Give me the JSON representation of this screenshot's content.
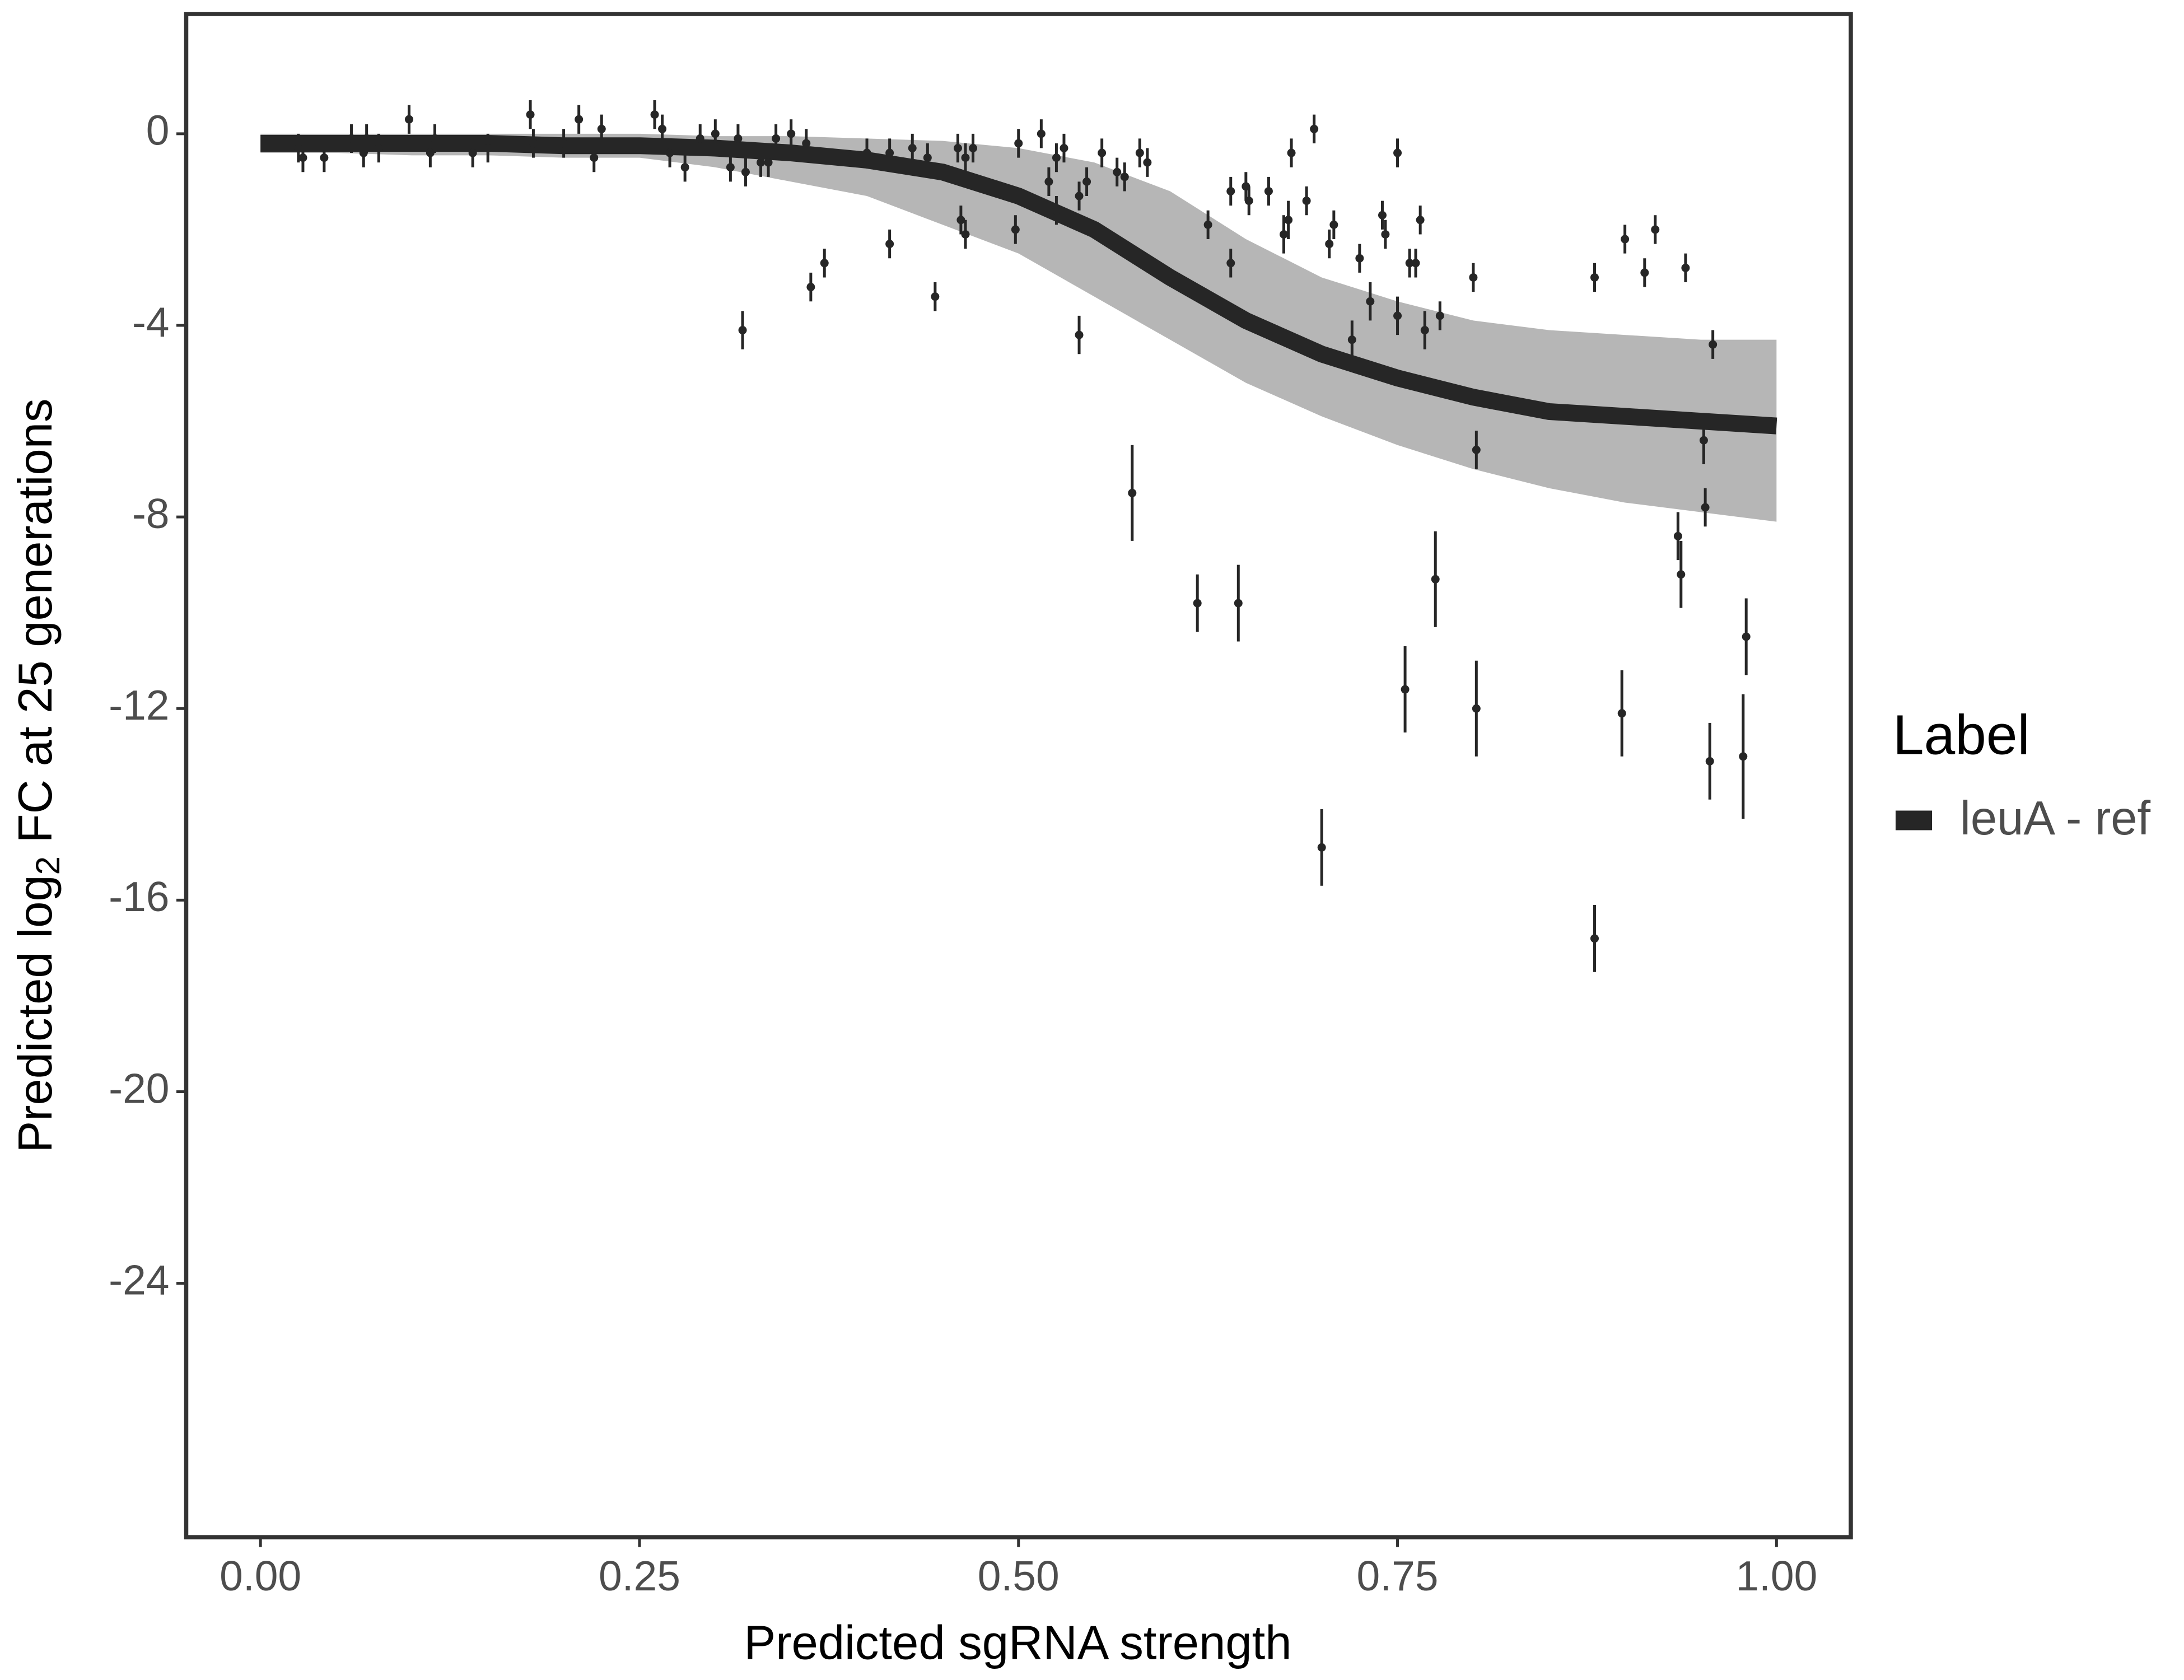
{
  "chart_data": {
    "type": "scatter",
    "x_label": "Predicted sgRNA strength",
    "y_label": [
      "Predicted  log",
      "2",
      " FC at 25 generations"
    ],
    "legend_title": "Label",
    "legend_position": "right",
    "grid": false,
    "xlim": [
      -0.049,
      1.049
    ],
    "ylim": [
      -29.3,
      2.5
    ],
    "xticks": [
      {
        "value": 0,
        "label": "0.00"
      },
      0.25,
      {
        "value": 0.5,
        "label": "0.50"
      },
      0.75,
      {
        "value": 1,
        "label": "1.00"
      }
    ],
    "yticks": [
      0,
      -4,
      -8,
      -12,
      -16,
      -20,
      -24
    ],
    "series": [
      {
        "name": "leuA - ref",
        "color": "#262626",
        "x": [
          0,
          0.05,
          0.1,
          0.15,
          0.2,
          0.25,
          0.3,
          0.35,
          0.4,
          0.45,
          0.5,
          0.55,
          0.6,
          0.65,
          0.7,
          0.75,
          0.8,
          0.85,
          0.9,
          0.95,
          1
        ],
        "values": [
          -0.2,
          -0.2,
          -0.2,
          -0.2,
          -0.25,
          -0.25,
          -0.3,
          -0.4,
          -0.55,
          -0.8,
          -1.3,
          -2.0,
          -3.0,
          -3.9,
          -4.6,
          -5.1,
          -5.5,
          -5.8,
          -5.9,
          -6.0,
          -6.1
        ]
      }
    ],
    "band": {
      "color": "#a9a9a9",
      "x": [
        0,
        0.05,
        0.1,
        0.15,
        0.2,
        0.25,
        0.3,
        0.35,
        0.4,
        0.45,
        0.5,
        0.55,
        0.6,
        0.65,
        0.7,
        0.75,
        0.8,
        0.85,
        0.9,
        0.95,
        1
      ],
      "upper": [
        0,
        0,
        0,
        0,
        0,
        0,
        -0.05,
        -0.05,
        -0.1,
        -0.15,
        -0.3,
        -0.6,
        -1.2,
        -2.2,
        -3.0,
        -3.5,
        -3.9,
        -4.1,
        -4.2,
        -4.3,
        -4.3
      ],
      "lower": [
        -0.4,
        -0.4,
        -0.45,
        -0.45,
        -0.5,
        -0.5,
        -0.7,
        -1.0,
        -1.3,
        -1.9,
        -2.5,
        -3.4,
        -4.3,
        -5.2,
        -5.9,
        -6.5,
        -7.0,
        -7.4,
        -7.7,
        -7.9,
        -8.1
      ]
    },
    "points": {
      "color": "#262626",
      "x": [
        0.025,
        0.028,
        0.042,
        0.06,
        0.068,
        0.07,
        0.078,
        0.098,
        0.112,
        0.115,
        0.14,
        0.15,
        0.178,
        0.18,
        0.2,
        0.21,
        0.22,
        0.225,
        0.26,
        0.265,
        0.27,
        0.28,
        0.29,
        0.3,
        0.31,
        0.315,
        0.32,
        0.33,
        0.335,
        0.34,
        0.35,
        0.36,
        0.318,
        0.363,
        0.372,
        0.4,
        0.415,
        0.415,
        0.43,
        0.44,
        0.445,
        0.46,
        0.462,
        0.465,
        0.47,
        0.465,
        0.498,
        0.5,
        0.515,
        0.52,
        0.525,
        0.525,
        0.53,
        0.54,
        0.545,
        0.54,
        0.555,
        0.565,
        0.57,
        0.575,
        0.58,
        0.585,
        0.618,
        0.625,
        0.64,
        0.64,
        0.645,
        0.65,
        0.652,
        0.665,
        0.675,
        0.678,
        0.68,
        0.69,
        0.695,
        0.7,
        0.705,
        0.708,
        0.72,
        0.725,
        0.732,
        0.74,
        0.742,
        0.75,
        0.75,
        0.755,
        0.758,
        0.762,
        0.765,
        0.768,
        0.775,
        0.778,
        0.8,
        0.802,
        0.802,
        0.88,
        0.88,
        0.898,
        0.9,
        0.913,
        0.92,
        0.935,
        0.937,
        0.94,
        0.952,
        0.953,
        0.956,
        0.958,
        0.978,
        0.98
      ],
      "values": [
        -0.3,
        -0.5,
        -0.5,
        -0.1,
        -0.4,
        -0.1,
        -0.3,
        0.3,
        -0.4,
        -0.1,
        -0.4,
        -0.3,
        0.4,
        -0.2,
        -0.2,
        0.3,
        -0.5,
        0.1,
        0.4,
        0.1,
        -0.4,
        -0.7,
        -0.1,
        0.0,
        -0.7,
        -0.1,
        -0.8,
        -0.6,
        -0.6,
        -0.1,
        0.0,
        -0.2,
        -4.1,
        -3.2,
        -2.7,
        -0.4,
        -0.4,
        -2.3,
        -0.3,
        -0.5,
        -3.4,
        -0.3,
        -1.8,
        -2.1,
        -0.3,
        -0.5,
        -2.0,
        -0.2,
        0.0,
        -1.0,
        -0.5,
        -1.6,
        -0.3,
        -1.3,
        -1.0,
        -4.2,
        -0.4,
        -0.8,
        -0.9,
        -7.5,
        -0.4,
        -0.6,
        -9.8,
        -1.9,
        -1.2,
        -2.7,
        -9.8,
        -1.1,
        -1.4,
        -1.2,
        -2.1,
        -1.8,
        -0.4,
        -1.4,
        0.1,
        -14.9,
        -2.3,
        -1.9,
        -4.3,
        -2.6,
        -3.5,
        -1.7,
        -2.1,
        -0.4,
        -3.8,
        -11.6,
        -2.7,
        -2.7,
        -1.8,
        -4.1,
        -9.3,
        -3.8,
        -3.0,
        -6.6,
        -12.0,
        -3.0,
        -16.8,
        -12.1,
        -2.2,
        -2.9,
        -2.0,
        -8.4,
        -9.2,
        -2.8,
        -6.4,
        -7.8,
        -13.1,
        -4.4,
        -13.0,
        -10.5
      ],
      "errors": [
        0.3,
        0.3,
        0.3,
        0.3,
        0.3,
        0.3,
        0.3,
        0.3,
        0.3,
        0.3,
        0.3,
        0.3,
        0.3,
        0.3,
        0.3,
        0.3,
        0.3,
        0.3,
        0.3,
        0.3,
        0.3,
        0.3,
        0.3,
        0.3,
        0.3,
        0.3,
        0.3,
        0.3,
        0.3,
        0.3,
        0.3,
        0.3,
        0.4,
        0.3,
        0.3,
        0.3,
        0.3,
        0.3,
        0.3,
        0.3,
        0.3,
        0.3,
        0.3,
        0.3,
        0.3,
        0.3,
        0.3,
        0.3,
        0.3,
        0.3,
        0.3,
        0.3,
        0.3,
        0.3,
        0.3,
        0.4,
        0.3,
        0.3,
        0.3,
        1.0,
        0.3,
        0.3,
        0.6,
        0.3,
        0.3,
        0.3,
        0.8,
        0.3,
        0.3,
        0.3,
        0.4,
        0.4,
        0.3,
        0.3,
        0.3,
        0.8,
        0.3,
        0.3,
        0.4,
        0.3,
        0.4,
        0.3,
        0.3,
        0.3,
        0.4,
        0.9,
        0.3,
        0.3,
        0.3,
        0.4,
        1.0,
        0.3,
        0.3,
        0.4,
        1.0,
        0.3,
        0.7,
        0.9,
        0.3,
        0.3,
        0.3,
        0.5,
        0.7,
        0.3,
        0.5,
        0.4,
        0.8,
        0.3,
        1.3,
        0.8
      ]
    }
  }
}
